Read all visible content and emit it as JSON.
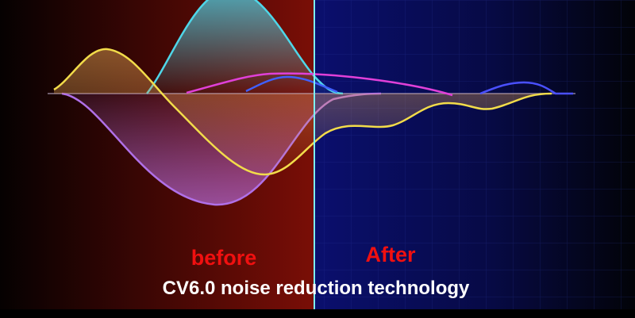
{
  "labels": {
    "before": "before",
    "after": "After"
  },
  "caption": "CV6.0 noise reduction technology"
}
